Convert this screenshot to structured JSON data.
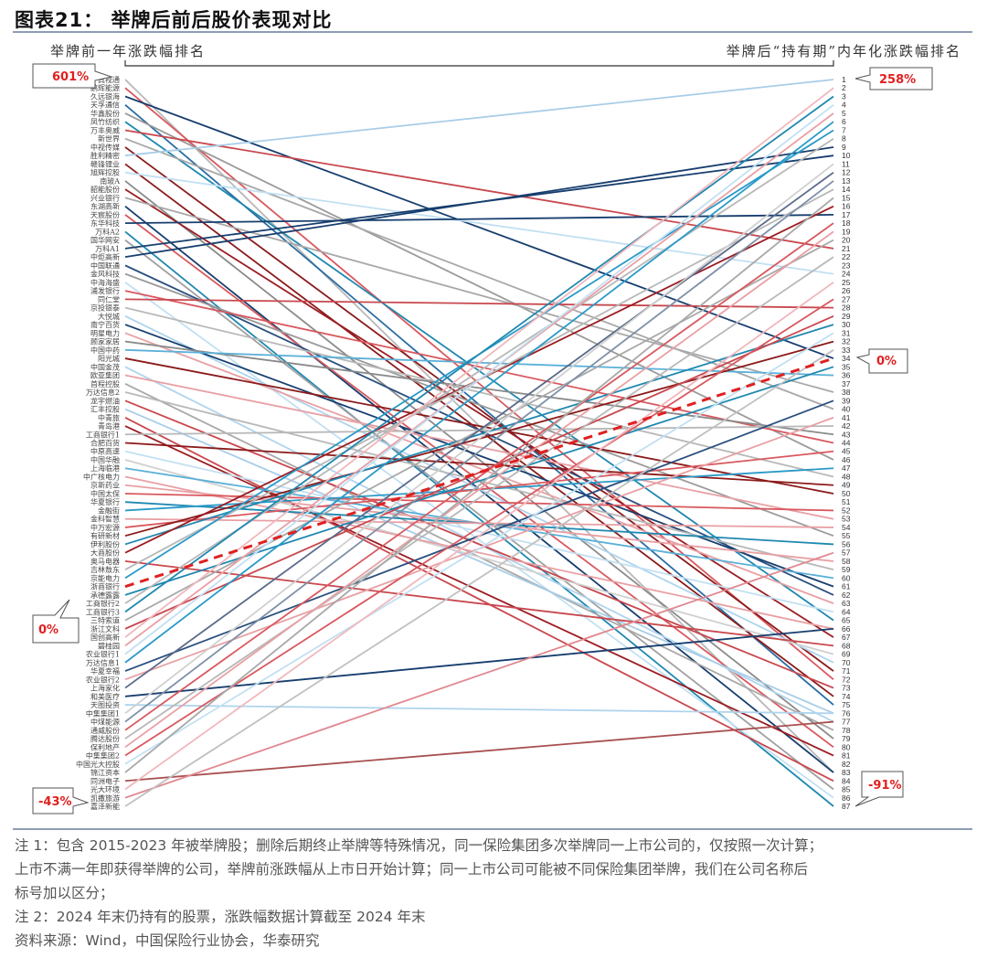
{
  "header": {
    "title": "图表21： 举牌后前后股价表现对比",
    "left_axis_title": "举牌前一年涨跌幅排名",
    "right_axis_title": "举牌后“持有期”内年化涨跌幅排名"
  },
  "callouts": {
    "left_top": "601%",
    "left_zero": "0%",
    "left_bottom": "-43%",
    "right_top": "258%",
    "right_zero": "0%",
    "right_bottom": "-91%"
  },
  "chart_data": {
    "type": "slope",
    "title": "举牌后前后股价表现对比",
    "left_label": "举牌前一年涨跌幅排名",
    "right_label": "举牌后“持有期”内年化涨跌幅排名",
    "left_range": [
      "601%",
      "-43%"
    ],
    "right_range": [
      "258%",
      "-91%"
    ],
    "zero_line": {
      "left_rank": 61,
      "right_rank": 34,
      "style": "dashed",
      "color": "#e02020"
    },
    "left_names": [
      "真视通",
      "鹏辉能源",
      "久远银海",
      "天孚通信",
      "华鑫股份",
      "凤竹纺织",
      "万丰奥威",
      "新世界",
      "中视传媒",
      "胜利精密",
      "赣锋锂业",
      "旭辉控股",
      "南玻A",
      "韶能股份",
      "兴业银行",
      "东湖高新",
      "天宸股份",
      "东华科技",
      "万科A2",
      "国华网安",
      "万科A1",
      "中炬高新",
      "中国联通",
      "金风科技",
      "中海海盛",
      "浦发银行",
      "同仁堂",
      "京投银泰",
      "大悦城",
      "南宁百货",
      "明星电力",
      "顾家家居",
      "中国中药",
      "阳光城",
      "中国金茂",
      "欧亚集团",
      "首程控股",
      "万达信息2",
      "龙宇燃油",
      "汇丰控股",
      "中青旅",
      "青岛港",
      "工商银行1",
      "合肥百货",
      "中原高速",
      "中国华融",
      "上海临港",
      "中广核电力",
      "京新药业",
      "中国太保",
      "华夏银行",
      "金融街",
      "金科智慧",
      "中万宏源",
      "有研新材",
      "伊利股份",
      "大商股份",
      "奥马电器",
      "吉林敖东",
      "京能电力",
      "浙商银行",
      "承德露露",
      "工商银行2",
      "工商银行3",
      "三特索道",
      "浙江文科",
      "国创高新",
      "碧桂园",
      "农业银行1",
      "万达信息1",
      "华夏幸福",
      "农业银行2",
      "上海家化",
      "和美医疗",
      "天图投资",
      "中集集团1",
      "中煤能源",
      "通威股份",
      "腾达股份",
      "保利地产",
      "中集集团2",
      "中国光大控股",
      "锦江资本",
      "同洲电子",
      "光大环境",
      "凯撒旅游",
      "嘉泽新能"
    ],
    "right_ranks": [
      "1",
      "2",
      "3",
      "4",
      "5",
      "6",
      "7",
      "8",
      "9",
      "10",
      "11",
      "12",
      "13",
      "14",
      "15",
      "16",
      "17",
      "18",
      "19",
      "20",
      "21",
      "22",
      "23",
      "24",
      "25",
      "26",
      "27",
      "28",
      "29",
      "30",
      "31",
      "32",
      "33",
      "34",
      "35",
      "36",
      "37",
      "38",
      "39",
      "40",
      "41",
      "42",
      "43",
      "44",
      "45",
      "46",
      "47",
      "48",
      "49",
      "50",
      "51",
      "52",
      "53",
      "54",
      "55",
      "56",
      "57",
      "58",
      "59",
      "60",
      "61",
      "62",
      "63",
      "64",
      "65",
      "66",
      "67",
      "68",
      "69",
      "70",
      "71",
      "72",
      "73",
      "74",
      "75",
      "76",
      "77",
      "78",
      "79",
      "80",
      "81",
      "82",
      "83",
      "84",
      "85",
      "86",
      "87"
    ],
    "links": [
      [
        1,
        83,
        "#b8b8b8"
      ],
      [
        2,
        72,
        "#d9585e"
      ],
      [
        3,
        34,
        "#173e6e"
      ],
      [
        4,
        75,
        "#2a6da3"
      ],
      [
        5,
        46,
        "#9a9a9a"
      ],
      [
        6,
        65,
        "#1f88b0"
      ],
      [
        7,
        21,
        "#c8484e"
      ],
      [
        8,
        40,
        "#a8a8a8"
      ],
      [
        9,
        71,
        "#8b1a1a"
      ],
      [
        10,
        1,
        "#a8cde8"
      ],
      [
        11,
        74,
        "#8b1a1a"
      ],
      [
        12,
        24,
        "#c2e0f2"
      ],
      [
        13,
        79,
        "#8a8a8a"
      ],
      [
        14,
        67,
        "#9b1c22"
      ],
      [
        15,
        38,
        "#a8a8a8"
      ],
      [
        16,
        83,
        "#173e6e"
      ],
      [
        17,
        80,
        "#d9585e"
      ],
      [
        18,
        17,
        "#173e6e"
      ],
      [
        19,
        87,
        "#1f88b0"
      ],
      [
        20,
        85,
        "#a0a0a0"
      ],
      [
        21,
        10,
        "#173e6e"
      ],
      [
        22,
        9,
        "#173e6e"
      ],
      [
        23,
        62,
        "#2a4f7e"
      ],
      [
        24,
        55,
        "#9a9a9a"
      ],
      [
        25,
        86,
        "#c2e0f2"
      ],
      [
        26,
        44,
        "#d9585e"
      ],
      [
        27,
        28,
        "#c8484e"
      ],
      [
        28,
        48,
        "#b8b8b8"
      ],
      [
        29,
        70,
        "#aed4ec"
      ],
      [
        30,
        61,
        "#173e6e"
      ],
      [
        31,
        63,
        "#e8a0a4"
      ],
      [
        32,
        43,
        "#8a8a8a"
      ],
      [
        33,
        36,
        "#5ab0d8"
      ],
      [
        34,
        50,
        "#8b1a1a"
      ],
      [
        35,
        77,
        "#aed4ec"
      ],
      [
        36,
        53,
        "#e8a0a4"
      ],
      [
        37,
        78,
        "#a8a8a8"
      ],
      [
        38,
        59,
        "#b8b8b8"
      ],
      [
        39,
        73,
        "#c8484e"
      ],
      [
        40,
        76,
        "#a8cde8"
      ],
      [
        41,
        84,
        "#c8484e"
      ],
      [
        42,
        81,
        "#9b1c22"
      ],
      [
        43,
        42,
        "#b8b8b8"
      ],
      [
        44,
        49,
        "#8b1a1a"
      ],
      [
        45,
        64,
        "#c2e0f2"
      ],
      [
        46,
        69,
        "#d0d0d0"
      ],
      [
        47,
        60,
        "#5ab0d8"
      ],
      [
        48,
        66,
        "#e8a0a4"
      ],
      [
        49,
        58,
        "#e8a0a4"
      ],
      [
        50,
        52,
        "#d9585e"
      ],
      [
        51,
        56,
        "#1f88b0"
      ],
      [
        52,
        47,
        "#2a9ac8"
      ],
      [
        53,
        54,
        "#e8a0a4"
      ],
      [
        54,
        45,
        "#d9585e"
      ],
      [
        55,
        32,
        "#8b1a1a"
      ],
      [
        56,
        30,
        "#1f88b0"
      ],
      [
        57,
        16,
        "#9b1c22"
      ],
      [
        58,
        68,
        "#c8484e"
      ],
      [
        59,
        14,
        "#b8b8b8"
      ],
      [
        60,
        7,
        "#2a9ac8"
      ],
      [
        62,
        35,
        "#1f88b0"
      ],
      [
        63,
        8,
        "#b8b8b8"
      ],
      [
        64,
        3,
        "#1f88b0"
      ],
      [
        65,
        20,
        "#a8a8a8"
      ],
      [
        66,
        29,
        "#c8484e"
      ],
      [
        67,
        2,
        "#f0b8bc"
      ],
      [
        68,
        5,
        "#e8a0a4"
      ],
      [
        69,
        4,
        "#c2e0f2"
      ],
      [
        70,
        6,
        "#2a9ac8"
      ],
      [
        71,
        39,
        "#2a4f7e"
      ],
      [
        72,
        41,
        "#e8a0a4"
      ],
      [
        73,
        12,
        "#5a6a8a"
      ],
      [
        74,
        66,
        "#173e6e"
      ],
      [
        75,
        76,
        "#aed4ec"
      ],
      [
        76,
        11,
        "#d0d0d0"
      ],
      [
        77,
        13,
        "#7e90a8"
      ],
      [
        78,
        18,
        "#d9585e"
      ],
      [
        79,
        22,
        "#b8b8b8"
      ],
      [
        80,
        19,
        "#e8a0a4"
      ],
      [
        81,
        27,
        "#d9585e"
      ],
      [
        82,
        31,
        "#c2e0f2"
      ],
      [
        83,
        15,
        "#a8a8a8"
      ],
      [
        84,
        77,
        "#a85050"
      ],
      [
        85,
        25,
        "#f0b8bc"
      ],
      [
        86,
        57,
        "#e08890"
      ],
      [
        87,
        33,
        "#c0c0c0"
      ]
    ]
  },
  "footer": {
    "note1_line1": "注 1：包含 2015-2023 年被举牌股；删除后期终止举牌等特殊情况，同一保险集团多次举牌同一上市公司的，仅按照一次计算；",
    "note1_line2": "上市不满一年即获得举牌的公司，举牌前涨跌幅从上市日开始计算；同一上市公司可能被不同保险集团举牌，我们在公司名称后",
    "note1_line3": "标号加以区分；",
    "note2": "注 2：2024 年末仍持有的股票，涨跌幅数据计算截至 2024 年末",
    "source": "资料来源：Wind，中国保险行业协会，华泰研究"
  }
}
